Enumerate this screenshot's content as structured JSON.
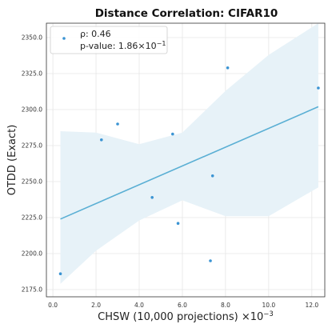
{
  "chart_data": {
    "type": "scatter",
    "title": "Distance Correlation: CIFAR10",
    "xlabel": "CHSW (10,000 projections) ×10",
    "xlabel_exponent": "−3",
    "ylabel": "OTDD (Exact)",
    "xlim": [
      -0.3,
      12.6
    ],
    "ylim": [
      2170,
      2360
    ],
    "xticks": [
      "0.0",
      "2.0",
      "4.0",
      "6.0",
      "8.0",
      "10.0",
      "12.0"
    ],
    "xtick_values": [
      0,
      2,
      4,
      6,
      8,
      10,
      12
    ],
    "yticks": [
      "2175.0",
      "2200.0",
      "2225.0",
      "2250.0",
      "2275.0",
      "2300.0",
      "2325.0",
      "2350.0"
    ],
    "ytick_values": [
      2175,
      2200,
      2225,
      2250,
      2275,
      2300,
      2325,
      2350
    ],
    "grid": true,
    "legend_position": "top-left",
    "points": [
      {
        "x": 0.35,
        "y": 2186
      },
      {
        "x": 2.25,
        "y": 2279
      },
      {
        "x": 3.0,
        "y": 2290
      },
      {
        "x": 4.6,
        "y": 2239
      },
      {
        "x": 5.55,
        "y": 2283
      },
      {
        "x": 5.8,
        "y": 2221
      },
      {
        "x": 7.3,
        "y": 2195
      },
      {
        "x": 7.4,
        "y": 2254
      },
      {
        "x": 8.1,
        "y": 2329
      },
      {
        "x": 12.3,
        "y": 2315
      }
    ],
    "regression_line": {
      "x": [
        0.35,
        12.3
      ],
      "y": [
        2224,
        2302
      ]
    },
    "confidence_band": {
      "x": [
        0.35,
        2.0,
        4.0,
        6.0,
        8.0,
        10.0,
        12.3
      ],
      "upper": [
        2285,
        2284,
        2276,
        2284,
        2313,
        2338,
        2362
      ],
      "lower": [
        2179,
        2202,
        2223,
        2237,
        2226,
        2226,
        2246
      ]
    },
    "legend": [
      {
        "label": "ρ: 0.46"
      },
      {
        "label": "p-value: 1.86×10",
        "exponent": "−1"
      }
    ],
    "colors": {
      "point": "#3b94d3",
      "line": "#5aafd4",
      "band": "#e7f2f8",
      "grid": "#e6e6e6",
      "frame": "#333333"
    }
  }
}
